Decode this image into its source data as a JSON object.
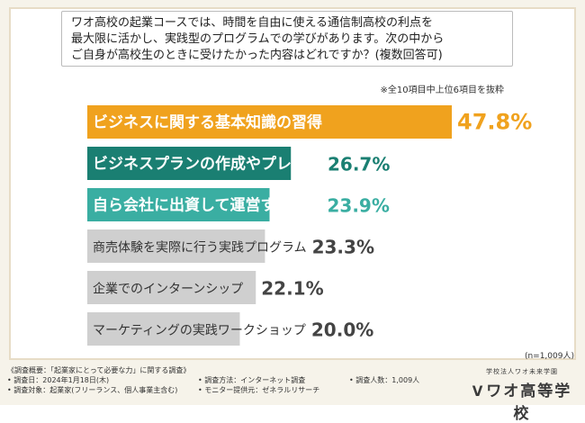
{
  "question": "ワオ高校の起業コースでは、時間を自由に使える通信制高校の利点を\n最大限に活かし、実践型のプログラムでの学びがあります。次の中から\nご自身が高校生のときに受けたかった内容はどれですか？(複数回答可)",
  "note": "※全10項目中上位6項目を抜粋",
  "sample_size": "(n=1,009人)",
  "chart_data": {
    "type": "bar",
    "orientation": "horizontal",
    "unit": "%",
    "categories": [
      "ビジネスに関する基本知識の習得",
      "ビジネスプランの作成やプレゼン",
      "自ら会社に出資して運営する実践",
      "商売体験を実際に行う実践プログラム",
      "企業でのインターンシップ",
      "マーケティングの実践ワークショップ"
    ],
    "values": [
      47.8,
      26.7,
      23.9,
      23.3,
      22.1,
      20.0
    ],
    "value_labels": [
      "47.8%",
      "26.7%",
      "23.9%",
      "23.3%",
      "22.1%",
      "20.0%"
    ],
    "xlim": [
      0,
      60
    ],
    "colors": {
      "bar_1": "#f0a21e",
      "bar_2": "#1a7f72",
      "bar_3": "#3aaea2",
      "bar_rest": "#cfcfcf",
      "value_1": "#f0a21e",
      "value_2": "#1a7f72",
      "value_3": "#3aaea2",
      "value_rest": "#444444",
      "label_on_color": "#ffffff",
      "label_on_gray": "#333333"
    }
  },
  "footer": {
    "title": "《調査概要：「起業家にとって必要な力」に関する調査》",
    "date": "• 調査日：2024年1月18日(木)",
    "method": "• 調査方法：インターネット調査",
    "respondents": "• 調査人数：1,009人",
    "target": "• 調査対象：起業家(フリーランス、個人事業主含む)",
    "provider": "• モニター提供元：ゼネラルリサーチ"
  },
  "logo": {
    "sub": "学校法人ワオ未来学園",
    "main": "ワオ高等学校"
  }
}
